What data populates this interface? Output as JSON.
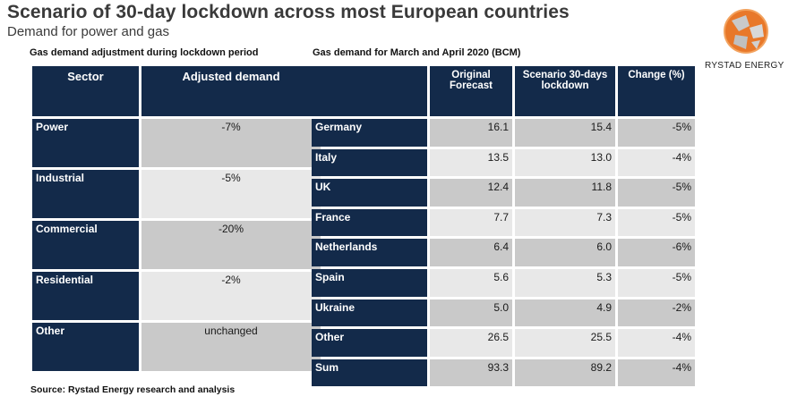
{
  "title": "Scenario of 30-day lockdown across most European countries",
  "subtitle": "Demand for power and gas",
  "logo": {
    "name": "RYSTAD ENERGY",
    "colors": {
      "primary": "#e8782a",
      "secondary": "#b9b9b9"
    }
  },
  "left_section": {
    "heading": "Gas demand adjustment during lockdown period",
    "columns": [
      "Sector",
      "Adjusted demand"
    ],
    "rows": [
      {
        "sector": "Power",
        "value": "-7%"
      },
      {
        "sector": "Industrial",
        "value": "-5%"
      },
      {
        "sector": "Commercial",
        "value": "-20%"
      },
      {
        "sector": "Residential",
        "value": "-2%"
      },
      {
        "sector": "Other",
        "value": "unchanged"
      }
    ]
  },
  "right_section": {
    "heading": "Gas demand for March and April 2020 (BCM)",
    "columns": [
      "",
      "Original\nForecast",
      "Scenario 30-days\nlockdown",
      "Change (%)"
    ],
    "rows": [
      {
        "country": "Germany",
        "original": "16.1",
        "scenario": "15.4",
        "change": "-5%"
      },
      {
        "country": "Italy",
        "original": "13.5",
        "scenario": "13.0",
        "change": "-4%"
      },
      {
        "country": "UK",
        "original": "12.4",
        "scenario": "11.8",
        "change": "-5%"
      },
      {
        "country": "France",
        "original": "7.7",
        "scenario": "7.3",
        "change": "-5%"
      },
      {
        "country": "Netherlands",
        "original": "6.4",
        "scenario": "6.0",
        "change": "-6%"
      },
      {
        "country": "Spain",
        "original": "5.6",
        "scenario": "5.3",
        "change": "-5%"
      },
      {
        "country": "Ukraine",
        "original": "5.0",
        "scenario": "4.9",
        "change": "-2%"
      },
      {
        "country": "Other",
        "original": "26.5",
        "scenario": "25.5",
        "change": "-4%"
      },
      {
        "country": "Sum",
        "original": "93.3",
        "scenario": "89.2",
        "change": "-4%"
      }
    ]
  },
  "source": "Source: Rystad Energy research and analysis",
  "colors": {
    "header_bg": "#132a4a",
    "cell_dark": "#c9c9c9",
    "cell_light": "#e8e8e8"
  }
}
